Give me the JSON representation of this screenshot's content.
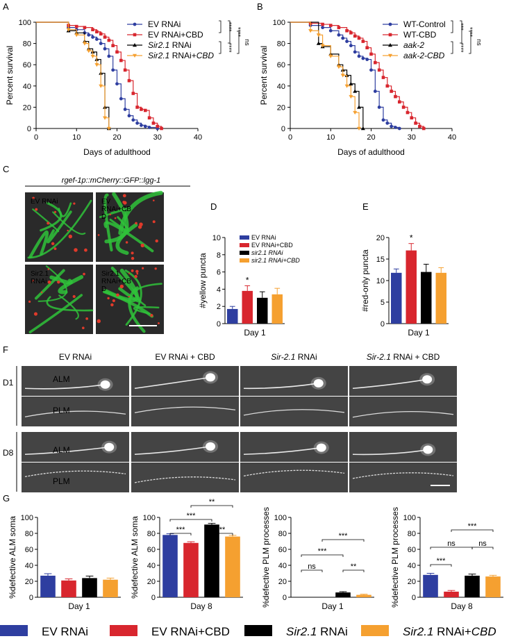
{
  "panels": {
    "A": "A",
    "B": "B",
    "C": "C",
    "D": "D",
    "E": "E",
    "F": "F",
    "G": "G"
  },
  "colors": {
    "blue": "#2e3ea0",
    "red": "#d8262e",
    "black": "#000000",
    "orange": "#f5a030",
    "gfp": "#2fc23a",
    "mcherry": "#e03a2a",
    "micro_bg": "#2a2a2a"
  },
  "chart_data": [
    {
      "id": "A",
      "type": "line",
      "xlabel": "Days of adulthood",
      "ylabel": "Percent survival",
      "xlim": [
        0,
        40
      ],
      "ylim": [
        0,
        100
      ],
      "xticks": [
        0,
        10,
        20,
        30,
        40
      ],
      "yticks": [
        0,
        20,
        40,
        60,
        80,
        100
      ],
      "legend_position": "top-right",
      "series": [
        {
          "name": "EV RNAi",
          "color": "#2e3ea0",
          "marker": "circle",
          "x": [
            0,
            8,
            10,
            12,
            13,
            14,
            15,
            16,
            17,
            18,
            19,
            20,
            21,
            22,
            23,
            24,
            25,
            26,
            27,
            28,
            30
          ],
          "y": [
            100,
            95,
            93,
            90,
            88,
            86,
            84,
            80,
            75,
            68,
            55,
            42,
            28,
            18,
            12,
            8,
            5,
            3,
            2,
            1,
            0
          ]
        },
        {
          "name": "EV RNAi+CBD",
          "color": "#d8262e",
          "marker": "square",
          "x": [
            0,
            8,
            10,
            12,
            14,
            15,
            16,
            17,
            18,
            19,
            20,
            21,
            22,
            23,
            24,
            25,
            26,
            27,
            28,
            29,
            30,
            31
          ],
          "y": [
            100,
            97,
            96,
            95,
            93,
            91,
            89,
            86,
            83,
            78,
            72,
            64,
            55,
            45,
            33,
            20,
            18,
            17,
            10,
            5,
            2,
            0
          ]
        },
        {
          "name": "Sir2.1 RNAi",
          "color": "#000000",
          "marker": "triangle",
          "x": [
            0,
            8,
            10,
            12,
            13,
            14,
            15,
            16,
            17,
            18
          ],
          "y": [
            100,
            92,
            90,
            82,
            75,
            72,
            65,
            52,
            20,
            0
          ]
        },
        {
          "name": "Sir2.1 RNAi+CBD",
          "color": "#f5a030",
          "marker": "triangle-down",
          "x": [
            0,
            8,
            10,
            12,
            13,
            14,
            15,
            16,
            17,
            18
          ],
          "y": [
            100,
            93,
            88,
            80,
            73,
            68,
            60,
            40,
            10,
            0
          ]
        }
      ],
      "legend": [
        {
          "text": "EV RNAi",
          "italic": false
        },
        {
          "text": "EV RNAi+CBD",
          "italic": false
        },
        {
          "prefix": "Sir2.1",
          "text": " RNAi",
          "italic": false
        },
        {
          "prefix": "Sir2.1",
          "text": " RNAi+",
          "suffix": "CBD",
          "italic": false
        }
      ],
      "significance": [
        "****",
        "****",
        "****",
        "ns"
      ]
    },
    {
      "id": "B",
      "type": "line",
      "xlabel": "Days of adulthood",
      "ylabel": "Percent survival",
      "xlim": [
        0,
        40
      ],
      "ylim": [
        0,
        100
      ],
      "xticks": [
        0,
        10,
        20,
        30,
        40
      ],
      "yticks": [
        0,
        20,
        40,
        60,
        80,
        100
      ],
      "legend_position": "top-right",
      "series": [
        {
          "name": "WT-Control",
          "color": "#2e3ea0",
          "marker": "circle",
          "x": [
            0,
            5,
            8,
            10,
            12,
            13,
            14,
            15,
            16,
            17,
            18,
            19,
            20,
            21,
            22,
            23,
            24,
            25,
            26,
            27
          ],
          "y": [
            100,
            97,
            95,
            92,
            88,
            85,
            82,
            78,
            72,
            68,
            66,
            65,
            55,
            35,
            20,
            8,
            5,
            2,
            1,
            0
          ]
        },
        {
          "name": "WT-CBD",
          "color": "#d8262e",
          "marker": "square",
          "x": [
            0,
            5,
            8,
            10,
            12,
            14,
            15,
            16,
            17,
            18,
            19,
            20,
            21,
            22,
            23,
            24,
            25,
            26,
            27,
            28,
            29,
            30,
            31,
            32,
            33
          ],
          "y": [
            100,
            99,
            98,
            97,
            95,
            92,
            90,
            87,
            85,
            82,
            76,
            70,
            62,
            55,
            48,
            40,
            35,
            30,
            25,
            20,
            15,
            10,
            5,
            2,
            0
          ]
        },
        {
          "name": "aak-2",
          "color": "#000000",
          "marker": "triangle",
          "x": [
            0,
            7,
            8,
            10,
            12,
            13,
            14,
            15,
            16,
            17,
            18
          ],
          "y": [
            100,
            80,
            77,
            70,
            60,
            55,
            50,
            42,
            35,
            20,
            0
          ]
        },
        {
          "name": "aak-2-CBD",
          "color": "#f5a030",
          "marker": "triangle-down",
          "x": [
            0,
            5,
            7,
            8,
            10,
            12,
            13,
            14,
            15,
            16,
            17
          ],
          "y": [
            100,
            92,
            88,
            78,
            68,
            58,
            50,
            40,
            30,
            15,
            0
          ]
        }
      ],
      "legend": [
        {
          "text": "WT-Control",
          "italic": false
        },
        {
          "text": "WT-CBD",
          "italic": false
        },
        {
          "text": "aak-2",
          "italic": true
        },
        {
          "text": "aak-2-CBD",
          "italic": true
        }
      ],
      "significance": [
        "***",
        "****",
        "****",
        "ns"
      ]
    },
    {
      "id": "D",
      "type": "bar",
      "ylabel": "#yellow puncta",
      "xlabel": "Day 1",
      "ylim": [
        0,
        10
      ],
      "yticks": [
        0,
        2,
        4,
        6,
        8,
        10
      ],
      "categories": [
        "EV RNAi",
        "EV RNAi+CBD",
        "sir2.1 RNAi",
        "sir2.1 RNAi+CBD"
      ],
      "values": [
        1.7,
        3.8,
        3.0,
        3.4
      ],
      "errors": [
        0.3,
        0.6,
        0.7,
        0.7
      ],
      "annotations": [
        "",
        "*",
        "",
        ""
      ],
      "legend": [
        "EV RNAi",
        "EV RNAi+CBD",
        "sir2.1 RNAi",
        "sir2.1 RNAi+CBD"
      ]
    },
    {
      "id": "E",
      "type": "bar",
      "ylabel": "#red-only puncta",
      "xlabel": "Day 1",
      "ylim": [
        0,
        20
      ],
      "yticks": [
        0,
        5,
        10,
        15,
        20
      ],
      "categories": [
        "EV RNAi",
        "EV RNAi+CBD",
        "sir2.1 RNAi",
        "sir2.1 RNAi+CBD"
      ],
      "values": [
        11.8,
        17.0,
        12.0,
        11.8
      ],
      "errors": [
        0.9,
        1.6,
        1.8,
        1.2
      ],
      "annotations": [
        "",
        "*",
        "",
        ""
      ]
    },
    {
      "id": "G1",
      "type": "bar",
      "ylabel": "%defective ALM soma",
      "xlabel": "Day 1",
      "ylim": [
        0,
        100
      ],
      "yticks": [
        0,
        20,
        40,
        60,
        80,
        100
      ],
      "categories": [
        "EV RNAi",
        "EV RNAi+CBD",
        "Sir2.1 RNAi",
        "Sir2.1 RNAi+CBD"
      ],
      "values": [
        27,
        21,
        24,
        22
      ],
      "errors": [
        2.5,
        2.0,
        2.5,
        2.0
      ],
      "brackets": []
    },
    {
      "id": "G2",
      "type": "bar",
      "ylabel": "%defective ALM soma",
      "xlabel": "Day 8",
      "ylim": [
        0,
        100
      ],
      "yticks": [
        0,
        20,
        40,
        60,
        80,
        100
      ],
      "categories": [
        "EV RNAi",
        "EV RNAi+CBD",
        "Sir2.1 RNAi",
        "Sir2.1 RNAi+CBD"
      ],
      "values": [
        78,
        68,
        91,
        76
      ],
      "errors": [
        1.5,
        1.5,
        1.5,
        1.5
      ],
      "brackets": [
        {
          "a": 0,
          "b": 1,
          "label": "***",
          "level": 0
        },
        {
          "a": 0,
          "b": 2,
          "label": "***",
          "level": 1
        },
        {
          "a": 2,
          "b": 3,
          "label": "**",
          "level": 0
        },
        {
          "a": 1,
          "b": 3,
          "label": "**",
          "level": 2
        }
      ]
    },
    {
      "id": "G3",
      "type": "bar",
      "ylabel": "%defective PLM processes",
      "xlabel": "Day 1",
      "ylim": [
        0,
        100
      ],
      "yticks": [
        0,
        20,
        40,
        60,
        80,
        100
      ],
      "categories": [
        "EV RNAi",
        "EV RNAi+CBD",
        "Sir2.1 RNAi",
        "Sir2.1 RNAi+CBD"
      ],
      "values": [
        0,
        0,
        6,
        3
      ],
      "errors": [
        0,
        0,
        1,
        0.8
      ],
      "brackets": [
        {
          "a": 0,
          "b": 1,
          "label": "ns",
          "level": 0
        },
        {
          "a": 0,
          "b": 2,
          "label": "***",
          "level": 1
        },
        {
          "a": 2,
          "b": 3,
          "label": "**",
          "level": 0
        },
        {
          "a": 1,
          "b": 3,
          "label": "***",
          "level": 2
        }
      ]
    },
    {
      "id": "G4",
      "type": "bar",
      "ylabel": "%defective PLM processes",
      "xlabel": "Day 8",
      "ylim": [
        0,
        100
      ],
      "yticks": [
        0,
        20,
        40,
        60,
        80,
        100
      ],
      "categories": [
        "EV RNAi",
        "EV RNAi+CBD",
        "Sir2.1 RNAi",
        "Sir2.1 RNAi+CBD"
      ],
      "values": [
        28,
        7,
        27,
        26
      ],
      "errors": [
        2,
        1.5,
        2,
        1.5
      ],
      "brackets": [
        {
          "a": 0,
          "b": 1,
          "label": "***",
          "level": 0
        },
        {
          "a": 0,
          "b": 2,
          "label": "ns",
          "level": 1
        },
        {
          "a": 2,
          "b": 3,
          "label": "ns",
          "level": 1
        },
        {
          "a": 1,
          "b": 3,
          "label": "***",
          "level": 2
        }
      ]
    }
  ],
  "panel_c": {
    "title": "rgef-1p::mCherry::GFP::lgg-1",
    "tiles": [
      [
        "EV RNAi"
      ],
      [
        "EV",
        "RNAi+CB",
        "D"
      ],
      [
        "Sir2.1",
        "RNAi"
      ],
      [
        "Sir2.1",
        "RNAi+CB",
        "D"
      ]
    ]
  },
  "panel_f": {
    "columns": [
      {
        "text": "EV RNAi"
      },
      {
        "text": "EV RNAi + CBD"
      },
      {
        "prefix": "Sir-2.1",
        "text": " RNAi"
      },
      {
        "prefix": "Sir-2.1",
        "text": " RNAi + CBD"
      }
    ],
    "rows": [
      "D1",
      "D8"
    ],
    "alm": "ALM",
    "plm": "PLM"
  },
  "bottom_legend": [
    {
      "text": "EV RNAi",
      "color": "#2e3ea0"
    },
    {
      "text": "EV RNAi+CBD",
      "color": "#d8262e"
    },
    {
      "prefix": "Sir2.1",
      "text": " RNAi",
      "color": "#000000"
    },
    {
      "prefix": "Sir2.1",
      "text": " RNAi+",
      "suffix": "CBD",
      "color": "#f5a030"
    }
  ]
}
